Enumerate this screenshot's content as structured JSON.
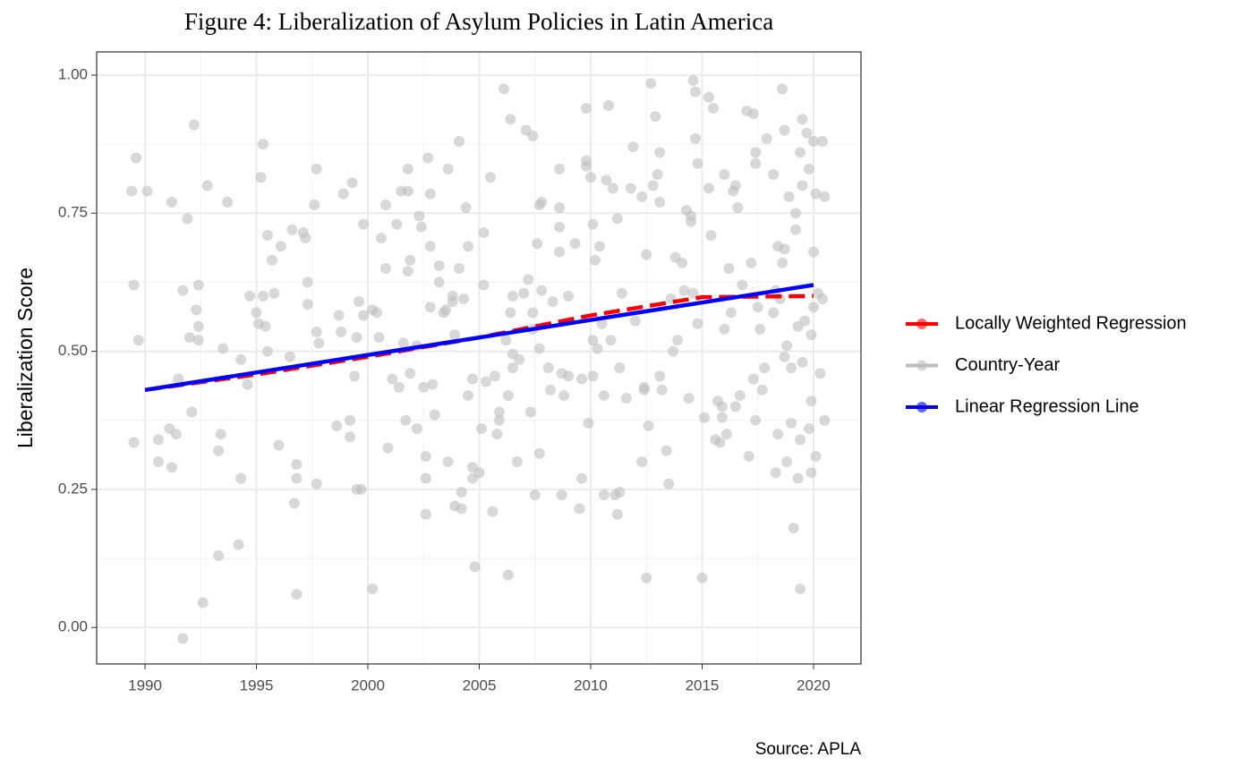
{
  "chart_data": {
    "type": "scatter",
    "title": "Figure 4: Liberalization of Asylum Policies in Latin America",
    "y_label": "Liberalization Score",
    "caption": "Source: APLA",
    "xlim": [
      1987.83,
      2022.13
    ],
    "ylim": [
      -0.066,
      1.042
    ],
    "xticks": [
      1990,
      1995,
      2000,
      2005,
      2010,
      2015,
      2020
    ],
    "yticks": [
      {
        "value": 0,
        "label": "0.00"
      },
      {
        "value": 0.25,
        "label": "0.25"
      },
      {
        "value": 0.5,
        "label": "0.50"
      },
      {
        "value": 0.75,
        "label": "0.75"
      },
      {
        "value": 1,
        "label": "1.00"
      }
    ],
    "grid": true,
    "legend": "right",
    "series": [
      {
        "name": "Locally Weighted Regression",
        "color": "#ff0000",
        "linestyle": "dashed",
        "x": [
          1990,
          1995,
          2000,
          2005,
          2010,
          2015,
          2020
        ],
        "values": [
          0.43,
          0.458,
          0.49,
          0.525,
          0.565,
          0.598,
          0.6
        ]
      },
      {
        "name": "Country-Year",
        "color": "#bebebe",
        "x": [
          1989.4,
          1989.5,
          1989.6,
          1989.7,
          1989.5,
          1990.1,
          1990.6,
          1990.6,
          1991.1,
          1991.2,
          1991.2,
          1991.4,
          1991.5,
          1991.7,
          1991.7,
          1991.9,
          1992.0,
          1992.1,
          1992.2,
          1992.3,
          1992.4,
          1992.4,
          1992.4,
          1992.6,
          1992.8,
          1993.3,
          1993.3,
          1993.4,
          1993.5,
          1993.7,
          1994.2,
          1994.3,
          1994.3,
          1994.6,
          1994.7,
          1995.0,
          1995.1,
          1995.2,
          1995.3,
          1995.3,
          1995.4,
          1995.5,
          1995.5,
          1995.7,
          1995.8,
          1996.0,
          1996.1,
          1996.5,
          1996.6,
          1996.7,
          1996.8,
          1996.8,
          1996.8,
          1997.1,
          1997.2,
          1997.3,
          1997.3,
          1997.6,
          1997.7,
          1997.7,
          1997.8,
          1997.7,
          1998.6,
          1998.7,
          1998.8,
          1998.9,
          1999.2,
          1999.2,
          1999.3,
          1999.4,
          1999.5,
          1999.5,
          1999.6,
          1999.7,
          1999.8,
          1999.8,
          2000.2,
          2000.2,
          2000.4,
          2000.5,
          2000.6,
          2000.8,
          2000.8,
          2000.9,
          2001.1,
          2001.3,
          2001.4,
          2001.5,
          2001.6,
          2001.7,
          2001.8,
          2001.8,
          2001.8,
          2001.9,
          2001.9,
          2002.2,
          2002.2,
          2002.3,
          2002.4,
          2002.5,
          2002.6,
          2002.6,
          2002.6,
          2002.7,
          2002.8,
          2002.8,
          2002.8,
          2002.9,
          2003.0,
          2003.2,
          2003.2,
          2003.4,
          2003.5,
          2003.6,
          2003.6,
          2003.8,
          2003.8,
          2003.9,
          2003.9,
          2004.1,
          2004.1,
          2004.2,
          2004.2,
          2004.3,
          2004.4,
          2004.5,
          2004.5,
          2004.7,
          2004.7,
          2004.7,
          2004.8,
          2005.0,
          2005.1,
          2005.2,
          2005.2,
          2005.3,
          2005.5,
          2005.6,
          2005.7,
          2005.8,
          2005.9,
          2005.9,
          2006.1,
          2006.2,
          2006.3,
          2006.3,
          2006.4,
          2006.4,
          2006.5,
          2006.5,
          2006.5,
          2006.7,
          2006.8,
          2007.0,
          2007.1,
          2007.2,
          2007.3,
          2007.4,
          2007.4,
          2007.4,
          2007.5,
          2007.6,
          2007.7,
          2007.7,
          2007.7,
          2007.8,
          2007.8,
          2008.1,
          2008.2,
          2008.3,
          2008.6,
          2008.6,
          2008.6,
          2008.6,
          2008.7,
          2008.7,
          2008.8,
          2009.0,
          2009.0,
          2009.3,
          2009.5,
          2009.6,
          2009.6,
          2009.8,
          2009.8,
          2009.8,
          2009.9,
          2010.0,
          2010.1,
          2010.1,
          2010.1,
          2010.2,
          2010.3,
          2010.4,
          2010.5,
          2010.6,
          2010.6,
          2010.7,
          2010.8,
          2010.9,
          2011.0,
          2011.1,
          2011.2,
          2011.2,
          2011.3,
          2011.3,
          2011.4,
          2011.6,
          2011.8,
          2011.9,
          2012.0,
          2012.3,
          2012.3,
          2012.4,
          2012.4,
          2012.5,
          2012.5,
          2012.6,
          2012.7,
          2012.8,
          2012.9,
          2013.0,
          2013.1,
          2013.1,
          2013.1,
          2013.2,
          2013.4,
          2013.5,
          2013.6,
          2013.7,
          2013.8,
          2013.9,
          2014.1,
          2014.2,
          2014.3,
          2014.4,
          2014.5,
          2014.5,
          2014.6,
          2014.6,
          2014.7,
          2014.7,
          2014.8,
          2014.8,
          2015.0,
          2015.1,
          2015.3,
          2015.3,
          2015.4,
          2015.5,
          2015.6,
          2015.7,
          2015.8,
          2015.9,
          2015.9,
          2016.0,
          2016.0,
          2016.1,
          2016.2,
          2016.3,
          2016.4,
          2016.5,
          2016.5,
          2016.6,
          2016.7,
          2016.8,
          2017.0,
          2017.1,
          2017.2,
          2017.3,
          2017.3,
          2017.4,
          2017.4,
          2017.4,
          2017.5,
          2017.6,
          2017.7,
          2017.8,
          2017.9,
          2018.2,
          2018.2,
          2018.3,
          2018.4,
          2018.4,
          2018.5,
          2018.6,
          2018.7,
          2018.7,
          2018.8,
          2018.9,
          2019.0,
          2019.1,
          2019.2,
          2019.3,
          2019.4,
          2019.4,
          2019.5,
          2019.8,
          2019.9,
          2019.9,
          2020.0,
          2018.3,
          2018.6,
          2018.7,
          2018.8,
          2019.0,
          2019.2,
          2019.3,
          2019.4,
          2019.5,
          2019.5,
          2019.6,
          2019.7,
          2019.8,
          2019.9,
          2020.0,
          2020.0,
          2020.1,
          2020.1,
          2020.2,
          2020.3,
          2020.4,
          2020.4,
          2020.5,
          2020.5
        ],
        "values": [
          0.79,
          0.62,
          0.85,
          0.52,
          0.335,
          0.79,
          0.34,
          0.3,
          0.36,
          0.77,
          0.29,
          0.35,
          0.45,
          0.61,
          -0.02,
          0.74,
          0.525,
          0.39,
          0.91,
          0.575,
          0.62,
          0.545,
          0.52,
          0.045,
          0.8,
          0.32,
          0.13,
          0.35,
          0.505,
          0.77,
          0.15,
          0.485,
          0.27,
          0.44,
          0.6,
          0.57,
          0.55,
          0.815,
          0.6,
          0.875,
          0.545,
          0.71,
          0.5,
          0.665,
          0.605,
          0.33,
          0.69,
          0.49,
          0.72,
          0.225,
          0.295,
          0.27,
          0.06,
          0.715,
          0.705,
          0.625,
          0.585,
          0.765,
          0.83,
          0.535,
          0.515,
          0.26,
          0.365,
          0.565,
          0.535,
          0.785,
          0.375,
          0.345,
          0.805,
          0.455,
          0.525,
          0.25,
          0.59,
          0.25,
          0.565,
          0.73,
          0.575,
          0.07,
          0.57,
          0.525,
          0.705,
          0.765,
          0.65,
          0.325,
          0.45,
          0.73,
          0.435,
          0.79,
          0.515,
          0.375,
          0.83,
          0.79,
          0.645,
          0.665,
          0.46,
          0.36,
          0.51,
          0.745,
          0.725,
          0.435,
          0.31,
          0.27,
          0.205,
          0.85,
          0.785,
          0.58,
          0.69,
          0.44,
          0.385,
          0.655,
          0.625,
          0.57,
          0.575,
          0.83,
          0.3,
          0.6,
          0.59,
          0.22,
          0.53,
          0.88,
          0.65,
          0.245,
          0.215,
          0.595,
          0.76,
          0.69,
          0.42,
          0.45,
          0.29,
          0.27,
          0.11,
          0.28,
          0.36,
          0.715,
          0.62,
          0.445,
          0.815,
          0.21,
          0.455,
          0.35,
          0.375,
          0.39,
          0.975,
          0.52,
          0.42,
          0.095,
          0.92,
          0.57,
          0.495,
          0.47,
          0.6,
          0.3,
          0.485,
          0.605,
          0.9,
          0.63,
          0.39,
          0.54,
          0.89,
          0.57,
          0.24,
          0.695,
          0.765,
          0.315,
          0.505,
          0.61,
          0.77,
          0.47,
          0.43,
          0.59,
          0.83,
          0.76,
          0.725,
          0.68,
          0.46,
          0.24,
          0.42,
          0.455,
          0.6,
          0.695,
          0.215,
          0.45,
          0.27,
          0.94,
          0.835,
          0.845,
          0.37,
          0.815,
          0.73,
          0.52,
          0.455,
          0.665,
          0.505,
          0.69,
          0.55,
          0.42,
          0.24,
          0.81,
          0.945,
          0.52,
          0.795,
          0.24,
          0.205,
          0.74,
          0.47,
          0.245,
          0.605,
          0.415,
          0.795,
          0.87,
          0.555,
          0.3,
          0.78,
          0.43,
          0.435,
          0.675,
          0.09,
          0.365,
          0.985,
          0.8,
          0.925,
          0.82,
          0.455,
          0.77,
          0.86,
          0.43,
          0.32,
          0.26,
          0.595,
          0.5,
          0.67,
          0.52,
          0.66,
          0.61,
          0.755,
          0.415,
          0.745,
          0.735,
          0.99,
          0.605,
          0.97,
          0.885,
          0.84,
          0.55,
          0.09,
          0.38,
          0.96,
          0.795,
          0.71,
          0.94,
          0.34,
          0.41,
          0.335,
          0.4,
          0.38,
          0.82,
          0.54,
          0.35,
          0.65,
          0.57,
          0.79,
          0.8,
          0.4,
          0.76,
          0.42,
          0.62,
          0.935,
          0.31,
          0.66,
          0.45,
          0.93,
          0.86,
          0.84,
          0.375,
          0.58,
          0.54,
          0.43,
          0.47,
          0.885,
          0.57,
          0.82,
          0.61,
          0.35,
          0.69,
          0.595,
          0.66,
          0.685,
          0.49,
          0.51,
          0.78,
          0.47,
          0.18,
          0.72,
          0.545,
          0.07,
          0.86,
          0.92,
          0.83,
          0.28,
          0.41,
          0.68,
          0.28,
          0.975,
          0.9,
          0.3,
          0.37,
          0.75,
          0.27,
          0.34,
          0.8,
          0.48,
          0.555,
          0.895,
          0.36,
          0.53,
          0.58,
          0.88,
          0.785,
          0.31,
          0.605,
          0.46,
          0.595,
          0.88,
          0.375,
          0.78
        ]
      },
      {
        "name": "Linear Regression Line",
        "color": "#0000ff",
        "x": [
          1990,
          2020
        ],
        "values": [
          0.43,
          0.62
        ]
      }
    ]
  }
}
